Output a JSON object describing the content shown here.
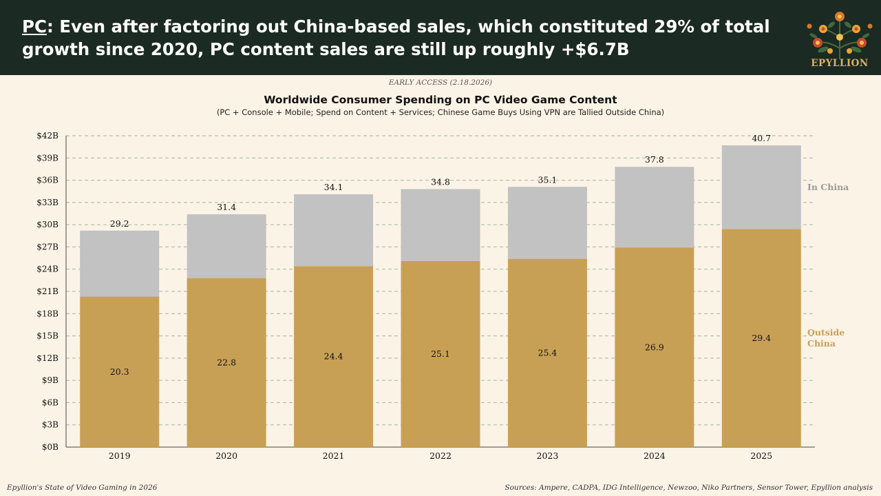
{
  "header": {
    "platform": "PC",
    "headline_rest": ": Even after factoring out China-based sales, which constituted 29% of total growth since 2020, PC content sales are still up roughly +$6.7B",
    "logo_text": "EPYLLION",
    "background_color": "#1b2a22"
  },
  "early_access": "EARLY ACCESS (2.18.2026)",
  "chart_data": {
    "type": "bar",
    "stacked": true,
    "title": "Worldwide Consumer Spending on PC Video Game Content",
    "subtitle": "(PC + Console + Mobile; Spend on Content + Services; Chinese Game Buys Using VPN are Tallied Outside China)",
    "categories": [
      "2019",
      "2020",
      "2021",
      "2022",
      "2023",
      "2024",
      "2025"
    ],
    "series": [
      {
        "name": "Outside China",
        "color": "#c8a055",
        "values": [
          20.3,
          22.8,
          24.4,
          25.1,
          25.4,
          26.9,
          29.4
        ]
      },
      {
        "name": "In China",
        "color": "#c2c2c2",
        "values": [
          8.9,
          8.6,
          9.7,
          9.7,
          9.7,
          10.9,
          11.3
        ]
      }
    ],
    "totals": [
      29.2,
      31.4,
      34.1,
      34.8,
      35.1,
      37.8,
      40.7
    ],
    "legend_labels": {
      "in_china": "In China",
      "outside_china_line1": "Outside",
      "outside_china_line2": "China"
    },
    "ylim": [
      0,
      42
    ],
    "yticks": [
      "$0B",
      "$3B",
      "$6B",
      "$9B",
      "$12B",
      "$15B",
      "$18B",
      "$21B",
      "$24B",
      "$27B",
      "$30B",
      "$33B",
      "$36B",
      "$39B",
      "$42B"
    ],
    "grid": true,
    "legend_position": "right"
  },
  "footer": {
    "left": "Epyllion's State of Video Gaming in 2026",
    "right": "Sources: Ampere, CADPA, IDG Intelligence, Newzoo, Niko Partners, Sensor Tower, Epyllion analysis"
  }
}
